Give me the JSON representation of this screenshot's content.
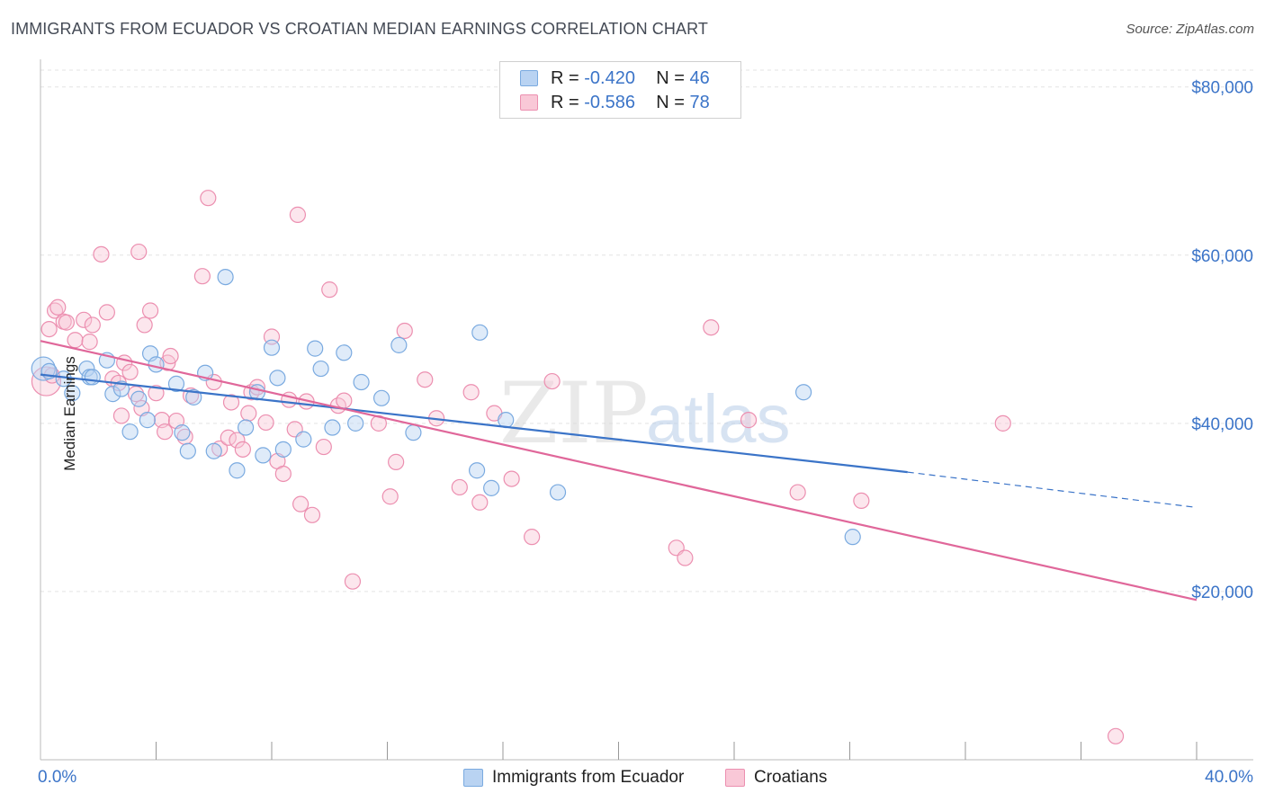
{
  "title": "IMMIGRANTS FROM ECUADOR VS CROATIAN MEDIAN EARNINGS CORRELATION CHART",
  "source": "Source: ZipAtlas.com",
  "watermark": {
    "zip": "ZIP",
    "atlas": "atlas"
  },
  "legend": {
    "r_label": "R =",
    "n_label": "N =",
    "rows": [
      {
        "r": "-0.420",
        "n": "46",
        "color": "#7aaae0",
        "fill": "#b9d3f2"
      },
      {
        "r": "-0.586",
        "n": "78",
        "color": "#ec8fb0",
        "fill": "#f9c8d7"
      }
    ]
  },
  "bottom_legend": [
    "Immigrants from Ecuador",
    "Croatians"
  ],
  "colors": {
    "blue_line": "#3b74c8",
    "pink_line": "#e0679a",
    "axis_text": "#3b74c8",
    "grid": "#e3e3e3"
  },
  "chart_data": {
    "type": "scatter",
    "title": "IMMIGRANTS FROM ECUADOR VS CROATIAN MEDIAN EARNINGS CORRELATION CHART",
    "xlabel": "",
    "ylabel": "Median Earnings",
    "xlim": [
      0,
      40
    ],
    "ylim": [
      0,
      82000
    ],
    "x_tick_labels": [
      "0.0%",
      "40.0%"
    ],
    "y_ticks": [
      20000,
      40000,
      60000,
      80000
    ],
    "y_tick_labels": [
      "$20,000",
      "$40,000",
      "$60,000",
      "$80,000"
    ],
    "grid": true,
    "legend_position": "top-center",
    "series": [
      {
        "name": "Immigrants from Ecuador",
        "r": -0.42,
        "n": 46,
        "trend": {
          "x": [
            0,
            30,
            40
          ],
          "y": [
            45800,
            34200,
            30000
          ],
          "solid_until": 30
        },
        "points": [
          [
            0.1,
            46500
          ],
          [
            0.3,
            46200
          ],
          [
            0.8,
            45300
          ],
          [
            1.1,
            43600
          ],
          [
            1.6,
            46500
          ],
          [
            1.7,
            45500
          ],
          [
            1.8,
            45500
          ],
          [
            2.3,
            47500
          ],
          [
            2.5,
            43500
          ],
          [
            2.8,
            44100
          ],
          [
            3.1,
            39000
          ],
          [
            3.4,
            42900
          ],
          [
            3.7,
            40400
          ],
          [
            3.8,
            48300
          ],
          [
            4.0,
            47000
          ],
          [
            4.7,
            44700
          ],
          [
            4.9,
            38900
          ],
          [
            5.1,
            36700
          ],
          [
            5.3,
            43100
          ],
          [
            5.7,
            46000
          ],
          [
            6.0,
            36700
          ],
          [
            6.4,
            57400
          ],
          [
            6.8,
            34400
          ],
          [
            7.1,
            39500
          ],
          [
            7.5,
            43700
          ],
          [
            7.7,
            36200
          ],
          [
            8.0,
            49000
          ],
          [
            8.2,
            45400
          ],
          [
            8.4,
            36900
          ],
          [
            9.1,
            38100
          ],
          [
            9.5,
            48900
          ],
          [
            9.7,
            46500
          ],
          [
            10.1,
            39500
          ],
          [
            10.5,
            48400
          ],
          [
            10.9,
            40000
          ],
          [
            11.1,
            44900
          ],
          [
            11.8,
            43000
          ],
          [
            12.4,
            49300
          ],
          [
            12.9,
            38900
          ],
          [
            15.1,
            34400
          ],
          [
            15.2,
            50800
          ],
          [
            15.6,
            32300
          ],
          [
            16.1,
            40400
          ],
          [
            17.9,
            31800
          ],
          [
            26.4,
            43700
          ],
          [
            28.1,
            26500
          ]
        ]
      },
      {
        "name": "Croatians",
        "r": -0.586,
        "n": 78,
        "trend": {
          "x": [
            0,
            40
          ],
          "y": [
            49800,
            19000
          ]
        },
        "points": [
          [
            0.2,
            45000
          ],
          [
            0.3,
            51200
          ],
          [
            0.4,
            45700
          ],
          [
            0.5,
            53400
          ],
          [
            0.6,
            53800
          ],
          [
            0.8,
            52100
          ],
          [
            0.9,
            52000
          ],
          [
            1.2,
            49900
          ],
          [
            1.5,
            52300
          ],
          [
            1.7,
            49700
          ],
          [
            1.8,
            51700
          ],
          [
            2.1,
            60100
          ],
          [
            2.3,
            53200
          ],
          [
            2.5,
            45300
          ],
          [
            2.7,
            44800
          ],
          [
            2.8,
            40900
          ],
          [
            2.9,
            47200
          ],
          [
            3.1,
            46100
          ],
          [
            3.3,
            43500
          ],
          [
            3.4,
            60400
          ],
          [
            3.5,
            41800
          ],
          [
            3.6,
            51700
          ],
          [
            3.8,
            53400
          ],
          [
            4.0,
            43600
          ],
          [
            4.2,
            40400
          ],
          [
            4.4,
            47200
          ],
          [
            4.5,
            48000
          ],
          [
            4.7,
            40300
          ],
          [
            5.0,
            38400
          ],
          [
            5.2,
            43300
          ],
          [
            5.6,
            57500
          ],
          [
            5.8,
            66800
          ],
          [
            6.0,
            44900
          ],
          [
            6.2,
            37000
          ],
          [
            6.5,
            38300
          ],
          [
            6.6,
            42500
          ],
          [
            6.8,
            38000
          ],
          [
            7.0,
            36900
          ],
          [
            7.3,
            43700
          ],
          [
            7.5,
            44300
          ],
          [
            7.8,
            40100
          ],
          [
            8.0,
            50300
          ],
          [
            8.2,
            35500
          ],
          [
            8.4,
            34000
          ],
          [
            8.6,
            42800
          ],
          [
            8.8,
            39300
          ],
          [
            8.9,
            64800
          ],
          [
            9.0,
            30400
          ],
          [
            9.4,
            29100
          ],
          [
            9.8,
            37200
          ],
          [
            10.0,
            55900
          ],
          [
            10.3,
            42100
          ],
          [
            10.5,
            42700
          ],
          [
            10.8,
            21200
          ],
          [
            11.7,
            40000
          ],
          [
            12.1,
            31300
          ],
          [
            12.3,
            35400
          ],
          [
            12.6,
            51000
          ],
          [
            13.3,
            45200
          ],
          [
            13.7,
            40600
          ],
          [
            14.5,
            32400
          ],
          [
            14.9,
            43700
          ],
          [
            15.7,
            41200
          ],
          [
            16.3,
            33400
          ],
          [
            17.0,
            26500
          ],
          [
            17.7,
            45000
          ],
          [
            22.0,
            25200
          ],
          [
            22.3,
            24000
          ],
          [
            23.2,
            51400
          ],
          [
            24.5,
            40400
          ],
          [
            26.2,
            31800
          ],
          [
            28.4,
            30800
          ],
          [
            33.3,
            40000
          ],
          [
            37.2,
            2800
          ],
          [
            4.3,
            39000
          ],
          [
            7.2,
            41200
          ],
          [
            9.2,
            42600
          ],
          [
            15.2,
            30600
          ]
        ]
      }
    ]
  }
}
